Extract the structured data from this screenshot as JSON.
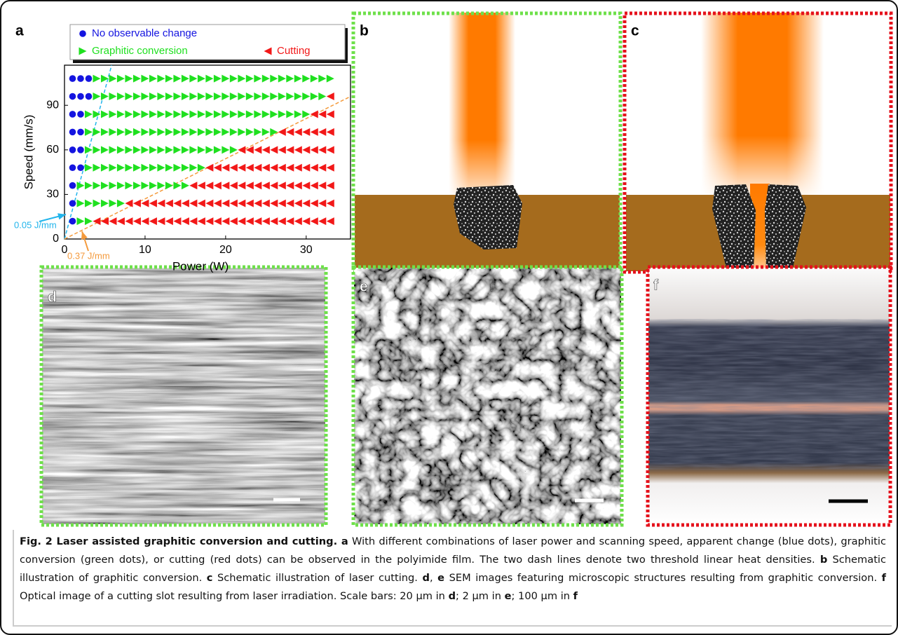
{
  "chart_data": {
    "type": "scatter",
    "panel_label": "a",
    "x_label": "Power (W)",
    "y_label": "Speed (mm/s)",
    "xlim": [
      0,
      35.5
    ],
    "ylim": [
      0,
      117
    ],
    "xticks": [
      0,
      10,
      20,
      30
    ],
    "yticks": [
      0,
      30,
      60,
      90
    ],
    "legend": "above",
    "thresholds": [
      {
        "value": 0.05,
        "label": "0.05 J/mm",
        "color": "#22b5ec"
      },
      {
        "value": 0.37,
        "label": "0.37 J/mm",
        "color": "#f49a3c"
      }
    ],
    "series": [
      {
        "name": "No observable change",
        "color": "#1414e0",
        "marker": "circle",
        "x": [
          1,
          2,
          3,
          1,
          2,
          3,
          1,
          2,
          1,
          2,
          1,
          2,
          1,
          2,
          1,
          1,
          1
        ],
        "y": [
          108,
          108,
          108,
          96,
          96,
          96,
          84,
          84,
          72,
          72,
          60,
          60,
          48,
          48,
          36,
          24,
          12
        ]
      },
      {
        "name": "Graphitic conversion",
        "color": "#1fe01f",
        "marker": "triangle-right",
        "x": [
          4,
          5,
          6,
          7,
          8,
          9,
          10,
          11,
          12,
          13,
          14,
          15,
          16,
          17,
          18,
          19,
          20,
          21,
          22,
          23,
          24,
          25,
          26,
          27,
          28,
          29,
          30,
          31,
          32,
          33,
          4,
          5,
          6,
          7,
          8,
          9,
          10,
          11,
          12,
          13,
          14,
          15,
          16,
          17,
          18,
          19,
          20,
          21,
          22,
          23,
          24,
          25,
          26,
          27,
          28,
          29,
          30,
          31,
          32,
          3,
          4,
          5,
          6,
          7,
          8,
          9,
          10,
          11,
          12,
          13,
          14,
          15,
          16,
          17,
          18,
          19,
          20,
          21,
          22,
          23,
          24,
          25,
          26,
          27,
          28,
          29,
          30,
          3,
          4,
          5,
          6,
          7,
          8,
          9,
          10,
          11,
          12,
          13,
          14,
          15,
          16,
          17,
          18,
          19,
          20,
          21,
          22,
          23,
          24,
          25,
          26,
          3,
          4,
          5,
          6,
          7,
          8,
          9,
          10,
          11,
          12,
          13,
          14,
          15,
          16,
          17,
          18,
          19,
          20,
          21,
          3,
          4,
          5,
          6,
          7,
          8,
          9,
          10,
          11,
          12,
          13,
          14,
          15,
          16,
          17,
          2,
          3,
          4,
          5,
          6,
          7,
          8,
          9,
          10,
          11,
          12,
          13,
          14,
          15,
          2,
          3,
          4,
          5,
          6,
          7,
          2,
          3
        ],
        "y": [
          108,
          108,
          108,
          108,
          108,
          108,
          108,
          108,
          108,
          108,
          108,
          108,
          108,
          108,
          108,
          108,
          108,
          108,
          108,
          108,
          108,
          108,
          108,
          108,
          108,
          108,
          108,
          108,
          108,
          108,
          96,
          96,
          96,
          96,
          96,
          96,
          96,
          96,
          96,
          96,
          96,
          96,
          96,
          96,
          96,
          96,
          96,
          96,
          96,
          96,
          96,
          96,
          96,
          96,
          96,
          96,
          96,
          96,
          96,
          84,
          84,
          84,
          84,
          84,
          84,
          84,
          84,
          84,
          84,
          84,
          84,
          84,
          84,
          84,
          84,
          84,
          84,
          84,
          84,
          84,
          84,
          84,
          84,
          84,
          84,
          84,
          84,
          72,
          72,
          72,
          72,
          72,
          72,
          72,
          72,
          72,
          72,
          72,
          72,
          72,
          72,
          72,
          72,
          72,
          72,
          72,
          72,
          72,
          72,
          72,
          72,
          60,
          60,
          60,
          60,
          60,
          60,
          60,
          60,
          60,
          60,
          60,
          60,
          60,
          60,
          60,
          60,
          60,
          60,
          60,
          48,
          48,
          48,
          48,
          48,
          48,
          48,
          48,
          48,
          48,
          48,
          48,
          48,
          48,
          48,
          36,
          36,
          36,
          36,
          36,
          36,
          36,
          36,
          36,
          36,
          36,
          36,
          36,
          36,
          24,
          24,
          24,
          24,
          24,
          24,
          12,
          12
        ]
      },
      {
        "name": "Cutting",
        "color": "#f21818",
        "marker": "triangle-left",
        "x": [
          33,
          31,
          32,
          33,
          27,
          28,
          29,
          30,
          31,
          32,
          33,
          22,
          23,
          24,
          25,
          26,
          27,
          28,
          29,
          30,
          31,
          32,
          33,
          18,
          19,
          20,
          21,
          22,
          23,
          24,
          25,
          26,
          27,
          28,
          29,
          30,
          31,
          32,
          33,
          16,
          17,
          18,
          19,
          20,
          21,
          22,
          23,
          24,
          25,
          26,
          27,
          28,
          29,
          30,
          31,
          32,
          33,
          8,
          9,
          10,
          11,
          12,
          13,
          14,
          15,
          16,
          17,
          18,
          19,
          20,
          21,
          22,
          23,
          24,
          25,
          26,
          27,
          28,
          29,
          30,
          31,
          32,
          33,
          4,
          5,
          6,
          7,
          8,
          9,
          10,
          11,
          12,
          13,
          14,
          15,
          16,
          17,
          18,
          19,
          20,
          21,
          22,
          23,
          24,
          25,
          26,
          27,
          28,
          29,
          30,
          31,
          32,
          33
        ],
        "y": [
          96,
          84,
          84,
          84,
          72,
          72,
          72,
          72,
          72,
          72,
          72,
          60,
          60,
          60,
          60,
          60,
          60,
          60,
          60,
          60,
          60,
          60,
          60,
          48,
          48,
          48,
          48,
          48,
          48,
          48,
          48,
          48,
          48,
          48,
          48,
          48,
          48,
          48,
          48,
          36,
          36,
          36,
          36,
          36,
          36,
          36,
          36,
          36,
          36,
          36,
          36,
          36,
          36,
          36,
          36,
          36,
          36,
          24,
          24,
          24,
          24,
          24,
          24,
          24,
          24,
          24,
          24,
          24,
          24,
          24,
          24,
          24,
          24,
          24,
          24,
          24,
          24,
          24,
          24,
          24,
          24,
          24,
          24,
          12,
          12,
          12,
          12,
          12,
          12,
          12,
          12,
          12,
          12,
          12,
          12,
          12,
          12,
          12,
          12,
          12,
          12,
          12,
          12,
          12,
          12,
          12,
          12,
          12,
          12,
          12,
          12,
          12,
          12
        ]
      }
    ]
  },
  "panel_labels": [
    "b",
    "c",
    "d",
    "e",
    "f"
  ],
  "caption": {
    "segments": [
      {
        "text": "Fig. 2 Laser assisted graphitic conversion and cutting. a",
        "bold": true
      },
      {
        "text": " With different combinations of laser power and scanning speed, apparent change (blue dots), graphitic conversion (green dots), or cutting (red dots) can be observed in the polyimide film. The two dash lines denote two threshold linear heat densities. "
      },
      {
        "text": "b",
        "bold": true
      },
      {
        "text": " Schematic illustration of graphitic conversion. "
      },
      {
        "text": "c",
        "bold": true
      },
      {
        "text": " Schematic illustration of laser cutting. "
      },
      {
        "text": "d",
        "bold": true
      },
      {
        "text": ", "
      },
      {
        "text": "e",
        "bold": true
      },
      {
        "text": " SEM images featuring microscopic structures resulting from graphitic conversion. "
      },
      {
        "text": "f",
        "bold": true
      },
      {
        "text": " Optical image of a cutting slot resulting from laser irradiation. Scale bars: 20 μm in "
      },
      {
        "text": "d",
        "bold": true
      },
      {
        "text": "; 2 μm in "
      },
      {
        "text": "e",
        "bold": true
      },
      {
        "text": "; 100 μm in "
      },
      {
        "text": "f",
        "bold": true
      }
    ]
  }
}
